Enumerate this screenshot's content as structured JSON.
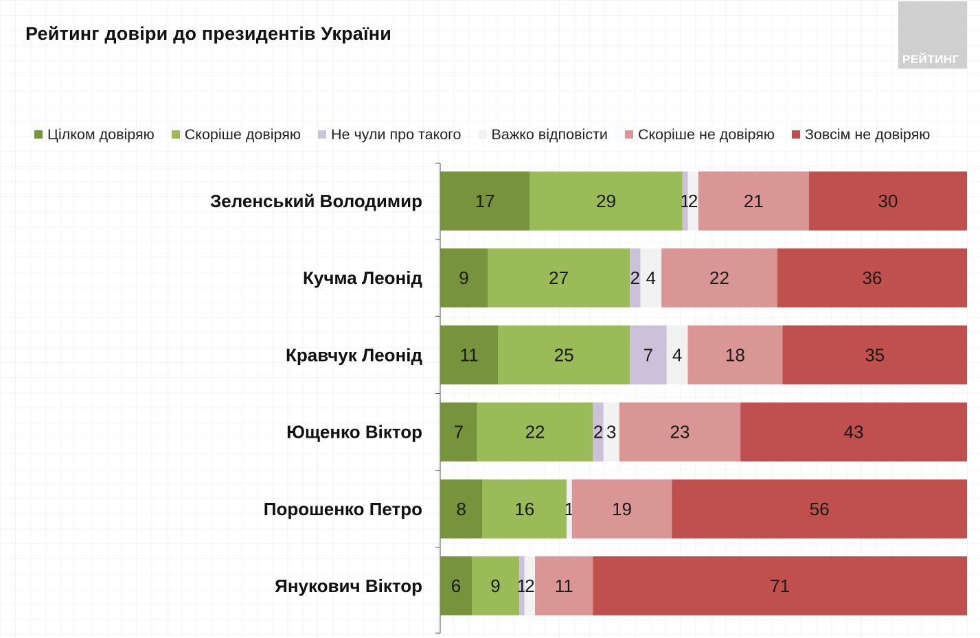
{
  "title": "Рейтинг довіри до президентів України",
  "logo_text": "РЕЙТИНГ",
  "legend": [
    {
      "label": "Цілком довіряю",
      "color": "#77933c"
    },
    {
      "label": "Скоріше довіряю",
      "color": "#9bbb59"
    },
    {
      "label": "Не чули про такого",
      "color": "#ccc1da"
    },
    {
      "label": "Важко відповісти",
      "color": "#f2f2f2"
    },
    {
      "label": "Скоріше не довіряю",
      "color": "#d99694"
    },
    {
      "label": "Зовсім не довіряю",
      "color": "#c0504d"
    }
  ],
  "chart_data": {
    "type": "bar",
    "orientation": "horizontal",
    "stacked": "100%",
    "title": "Рейтинг довіри до президентів України",
    "categories": [
      "Зеленський Володимир",
      "Кучма Леонід",
      "Кравчук Леонід",
      "Ющенко Віктор",
      "Порошенко Петро",
      "Янукович Віктор"
    ],
    "series": [
      {
        "name": "Цілком довіряю",
        "color": "#77933c",
        "values": [
          17,
          9,
          11,
          7,
          8,
          6
        ]
      },
      {
        "name": "Скоріше довіряю",
        "color": "#9bbb59",
        "values": [
          29,
          27,
          25,
          22,
          16,
          9
        ]
      },
      {
        "name": "Не чули про такого",
        "color": "#ccc1da",
        "values": [
          1,
          2,
          7,
          2,
          0,
          1
        ]
      },
      {
        "name": "Важко відповісти",
        "color": "#f2f2f2",
        "values": [
          2,
          4,
          4,
          3,
          1,
          2
        ]
      },
      {
        "name": "Скоріше не довіряю",
        "color": "#d99694",
        "values": [
          21,
          22,
          18,
          23,
          19,
          11
        ]
      },
      {
        "name": "Зовсім не довіряю",
        "color": "#c0504d",
        "values": [
          30,
          36,
          35,
          43,
          56,
          71
        ]
      }
    ],
    "data_labels": true,
    "legend_position": "top"
  }
}
